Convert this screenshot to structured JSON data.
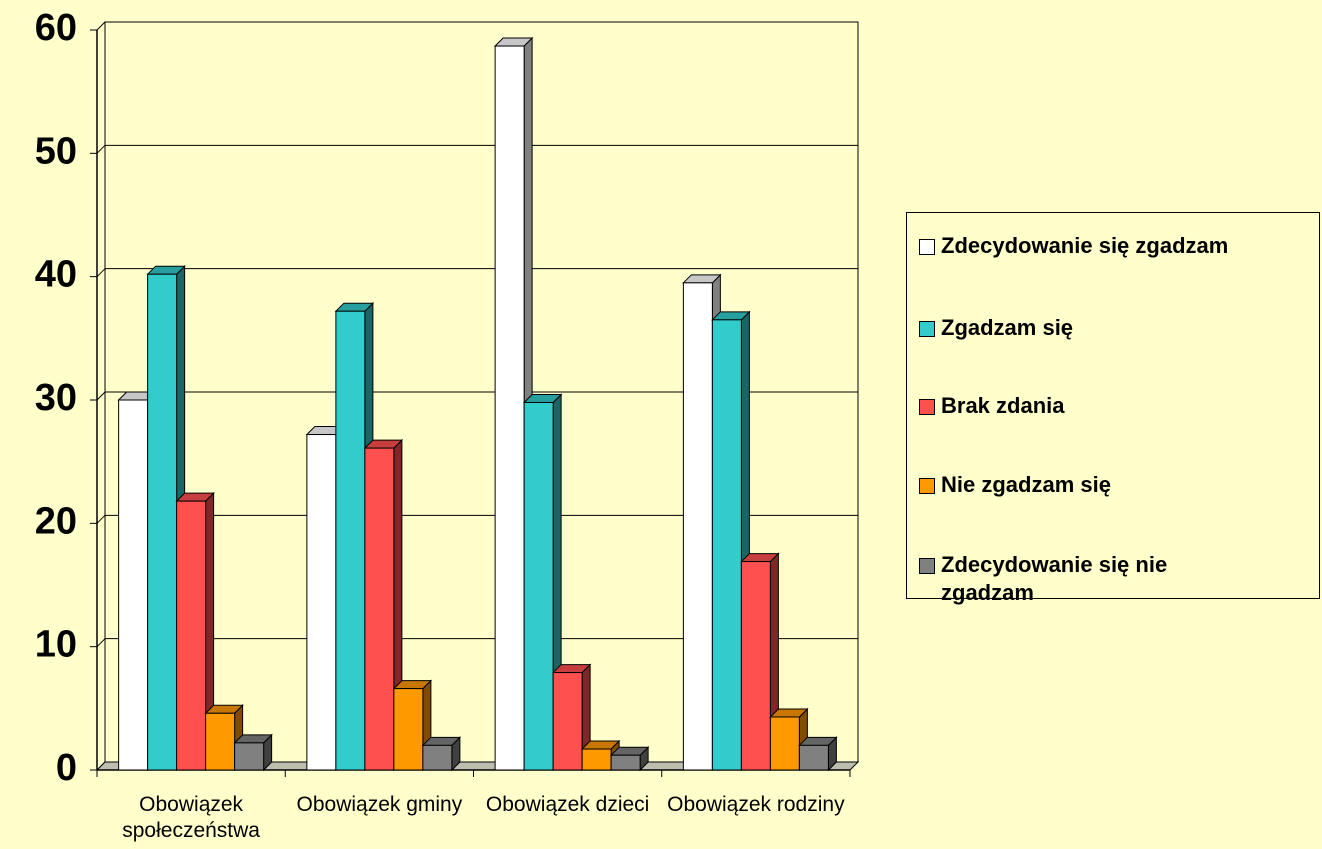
{
  "chart_data": {
    "type": "bar3d",
    "categories": [
      "Obowiązek społeczeństwa",
      "Obowiązek gminy",
      "Obowiązek dzieci",
      "Obowiązek rodziny"
    ],
    "series": [
      {
        "name": "Zdecydowanie się zgadzam",
        "color": "#ffffff",
        "values": [
          30.0,
          27.2,
          58.7,
          39.5
        ]
      },
      {
        "name": "Zgadzam się",
        "color": "#33cccc",
        "values": [
          40.2,
          37.2,
          29.8,
          36.5
        ]
      },
      {
        "name": "Brak zdania",
        "color": "#ff5050",
        "values": [
          21.8,
          26.1,
          7.9,
          16.9
        ]
      },
      {
        "name": "Nie zgadzam się",
        "color": "#ff9900",
        "values": [
          4.6,
          6.6,
          1.7,
          4.3
        ]
      },
      {
        "name": "Zdecydowanie się nie zgadzam",
        "color": "#808080",
        "values": [
          2.2,
          2.0,
          1.2,
          2.0
        ]
      }
    ],
    "ylim": [
      0,
      60
    ],
    "yticks": [
      0,
      10,
      20,
      30,
      40,
      50,
      60
    ],
    "grid": true,
    "legend": "right"
  }
}
